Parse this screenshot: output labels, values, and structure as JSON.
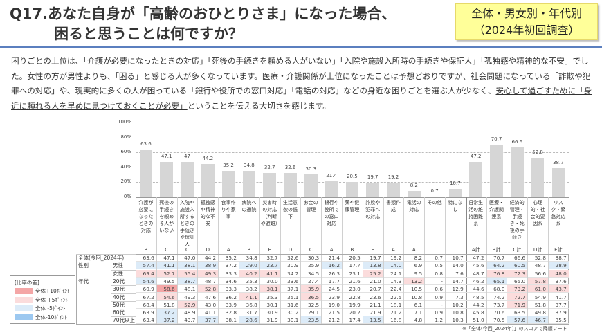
{
  "header": {
    "title_line1": "Q17.あなた自身が「高齢のおひとりさま」になった場合、",
    "title_line2": "困ると思うことは何ですか？",
    "badge_line1": "全体・男女別・年代別",
    "badge_line2": "（2024年初回調査）"
  },
  "paragraph": {
    "before": "困りごとの上位は、「介護が必要になったときの対応」「死後の手続きを頼める人がいない」「入院や施設入所時の手続きや保証人」「孤独感や精神的な不安」でした。女性の方が男性よりも、「困る」と感じる人が多くなっています。医療・介護関係が上位になったことは予想どおりですが、社会問題になっている「詐欺や犯罪への対応」や、現実的に多くの人が困っている「銀行や役所での窓口対応」「電話の対応」などの身近な困りごとを選ぶ人が少なく、",
    "underlined": "安心して過ごすために「身近に頼れる人を早めに見つけておくことが必要」",
    "after": "ということを伝える大切さを感じます。"
  },
  "chart_data": {
    "type": "bar",
    "ylim": [
      0,
      100
    ],
    "yticks": [
      "0%",
      "20%",
      "40%",
      "60%",
      "80%",
      "100%"
    ],
    "grid": true,
    "bar_color": "#d6d6d6",
    "categories": [
      "介護が必要になったときの対応",
      "死後の手続きを頼める人がいない",
      "入院や施設入所するときの手続きや保証人",
      "孤独感や精神的な不安",
      "食事作りや家事",
      "病院への通院",
      "災害時の対応（判断や避難）",
      "生活意欲の低下",
      "お金の管理",
      "銀行や役所での窓口対応",
      "薬や健康管理",
      "詐欺や犯罪への対応",
      "書類作成",
      "電話の対応",
      "その他",
      "特になし",
      "日常生活の維持困難系",
      "医療・介護関連系",
      "経済的管理・手続き・死後の手続き",
      "心理的・社会的要因系",
      "リスク・緊急対応系"
    ],
    "codes": [
      "B",
      "C",
      "C",
      "D",
      "A",
      "B",
      "E",
      "D",
      "C",
      "A",
      "B",
      "E",
      "A",
      "A",
      "",
      "",
      "A計",
      "B計",
      "C計",
      "D計",
      "E計"
    ],
    "values": [
      63.6,
      47.1,
      47.0,
      44.2,
      35.2,
      34.8,
      32.7,
      32.6,
      30.3,
      21.4,
      20.5,
      19.7,
      19.2,
      8.2,
      0.7,
      10.7,
      47.2,
      70.7,
      66.6,
      52.8,
      38.7
    ]
  },
  "table": {
    "rows": [
      {
        "group": "",
        "label": "全体(今回_2024年)",
        "values": [
          "63.6",
          "47.1",
          "47.0",
          "44.2",
          "35.2",
          "34.8",
          "32.7",
          "32.6",
          "30.3",
          "21.4",
          "20.5",
          "19.7",
          "19.2",
          "8.2",
          "0.7",
          "10.7",
          "47.2",
          "70.7",
          "66.6",
          "52.8",
          "38.7"
        ]
      },
      {
        "group": "性別",
        "label": "男性",
        "values": [
          "57.4",
          "41.1",
          "38.1",
          "38.9",
          "37.2",
          "29.0",
          "23.7",
          "30.9",
          "25.9",
          "16.2",
          "17.7",
          "13.8",
          "14.0",
          "6.9",
          "0.5",
          "14.0",
          "45.6",
          "64.2",
          "60.5",
          "48.7",
          "28.9"
        ]
      },
      {
        "group": "",
        "label": "女性",
        "values": [
          "69.4",
          "52.7",
          "55.4",
          "49.3",
          "33.3",
          "40.2",
          "41.1",
          "34.2",
          "34.5",
          "26.3",
          "23.1",
          "25.2",
          "24.1",
          "9.5",
          "0.8",
          "7.6",
          "48.7",
          "76.8",
          "72.3",
          "56.6",
          "48.0"
        ]
      },
      {
        "group": "年代",
        "label": "20代",
        "values": [
          "54.6",
          "49.5",
          "38.7",
          "48.7",
          "34.6",
          "35.3",
          "30.0",
          "33.6",
          "27.4",
          "17.7",
          "21.6",
          "21.0",
          "14.3",
          "13.2",
          "-",
          "14.7",
          "46.2",
          "65.1",
          "65.0",
          "57.8",
          "37.6"
        ]
      },
      {
        "group": "",
        "label": "30代",
        "values": [
          "60.9",
          "58.6",
          "48.1",
          "52.8",
          "33.3",
          "38.2",
          "38.1",
          "37.1",
          "35.9",
          "24.5",
          "23.0",
          "20.7",
          "22.4",
          "10.5",
          "0.6",
          "12.9",
          "44.6",
          "68.0",
          "73.2",
          "61.0",
          "43.7"
        ]
      },
      {
        "group": "",
        "label": "40代",
        "values": [
          "67.2",
          "54.6",
          "49.3",
          "47.6",
          "36.2",
          "41.1",
          "35.3",
          "35.1",
          "36.5",
          "23.9",
          "22.8",
          "23.6",
          "22.5",
          "10.8",
          "0.9",
          "7.3",
          "48.5",
          "74.2",
          "72.7",
          "54.9",
          "41.7"
        ]
      },
      {
        "group": "",
        "label": "50代",
        "values": [
          "68.4",
          "51.8",
          "52.9",
          "43.0",
          "33.9",
          "36.8",
          "30.1",
          "31.6",
          "32.5",
          "19.0",
          "19.9",
          "21.1",
          "18.1",
          "6.1",
          "-",
          "10.2",
          "44.2",
          "73.7",
          "71.9",
          "51.8",
          "37.7"
        ]
      },
      {
        "group": "",
        "label": "60代",
        "values": [
          "63.9",
          "37.2",
          "48.9",
          "41.1",
          "32.8",
          "31.7",
          "30.9",
          "30.2",
          "29.1",
          "21.5",
          "20.2",
          "21.9",
          "21.2",
          "7.1",
          "0.9",
          "10.8",
          "45.8",
          "70.6",
          "63.5",
          "49.8",
          "37.9"
        ]
      },
      {
        "group": "",
        "label": "70代以上",
        "values": [
          "63.4",
          "37.2",
          "43.7",
          "37.7",
          "38.1",
          "28.6",
          "31.9",
          "30.1",
          "23.5",
          "21.2",
          "17.4",
          "13.5",
          "16.8",
          "4.8",
          "1.2",
          "10.3",
          "51.0",
          "70.5",
          "57.6",
          "46.7",
          "35.5"
        ]
      }
    ]
  },
  "legend": {
    "title": "[比率の差]",
    "items": [
      {
        "label": "全体+10ﾎﾟｲﾝﾄ",
        "color": "#f4a6a6",
        "threshold": 10
      },
      {
        "label": "全体 +5ﾎﾟｲﾝﾄ",
        "color": "#fbdcdc",
        "threshold": 5
      },
      {
        "label": "全体 -5ﾎﾟｲﾝﾄ",
        "color": "#dcebf8",
        "threshold": -5
      },
      {
        "label": "全体-10ﾎﾟｲﾝﾄ",
        "color": "#9cc8f0",
        "threshold": -10
      }
    ]
  },
  "footnote": "※「全体(今回_2024年)」のスコアで降順ソート"
}
